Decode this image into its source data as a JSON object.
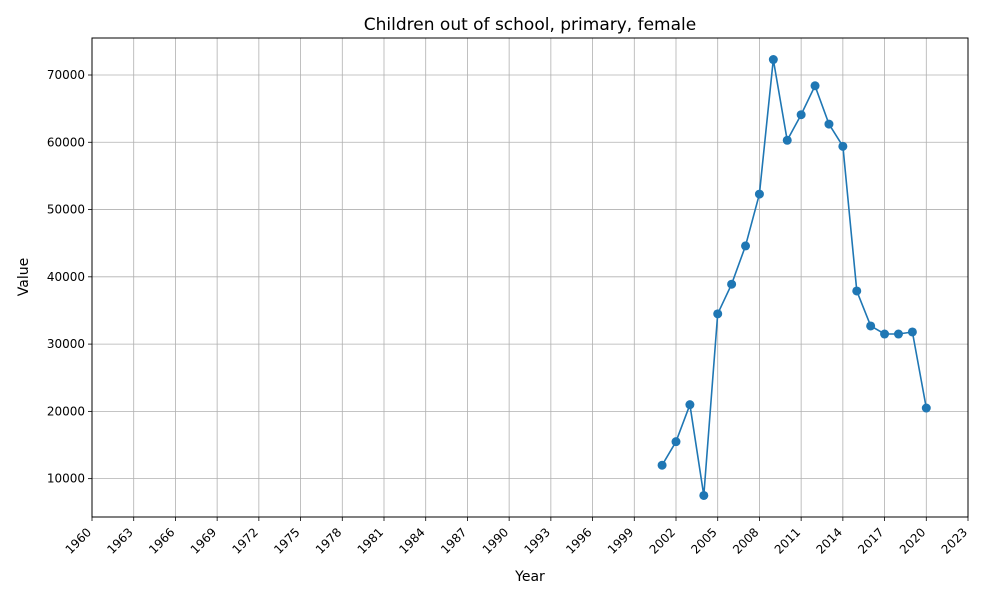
{
  "chart_data": {
    "type": "line",
    "title": "Children out of school, primary, female",
    "xlabel": "Year",
    "ylabel": "Value",
    "xlim": [
      1960,
      2023
    ],
    "ylim": [
      4300,
      75500
    ],
    "xticks": [
      1960,
      1963,
      1966,
      1969,
      1972,
      1975,
      1978,
      1981,
      1984,
      1987,
      1990,
      1993,
      1996,
      1999,
      2002,
      2005,
      2008,
      2011,
      2014,
      2017,
      2020,
      2023
    ],
    "yticks": [
      10000,
      20000,
      30000,
      40000,
      50000,
      60000,
      70000
    ],
    "grid": true,
    "color": "#1f77b4",
    "series": [
      {
        "x": [
          2001,
          2002,
          2003,
          2004,
          2005,
          2006,
          2007,
          2008,
          2009,
          2010,
          2011,
          2012,
          2013,
          2014,
          2015,
          2016,
          2017,
          2018,
          2019,
          2020
        ],
        "values": [
          12000,
          15500,
          21000,
          7500,
          34500,
          38900,
          44600,
          52300,
          72300,
          60300,
          64100,
          68400,
          62700,
          59400,
          37900,
          32700,
          31500,
          31500,
          31800,
          20500
        ]
      }
    ]
  }
}
